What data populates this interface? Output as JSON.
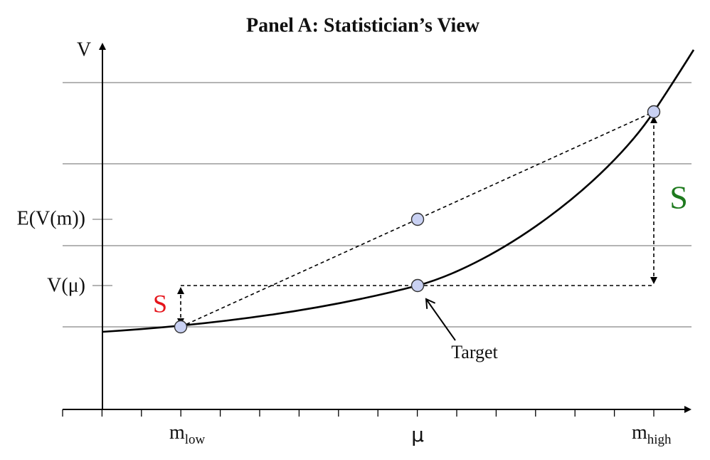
{
  "title": "Panel A: Statistician’s View",
  "axes": {
    "y_label": "V"
  },
  "y_labels": {
    "expected": "E(V(m))",
    "at_mean": "V(μ)"
  },
  "x_labels": {
    "low": {
      "base": "m",
      "sub": "low"
    },
    "mean": "μ",
    "high": {
      "base": "m",
      "sub": "high"
    }
  },
  "annotations": {
    "small_spread": "S",
    "large_spread": "S",
    "target": "Target"
  }
}
